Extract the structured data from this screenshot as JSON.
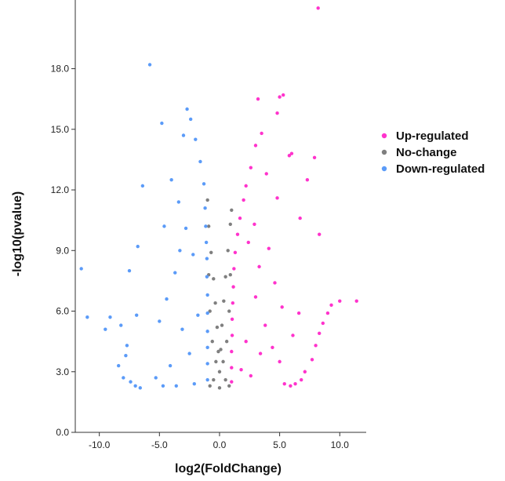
{
  "chart_data": {
    "type": "scatter",
    "title": "",
    "xlabel": "log2(FoldChange)",
    "ylabel": "-log10(pvalue)",
    "xlim": [
      -12,
      12.2
    ],
    "ylim": [
      0,
      21.4
    ],
    "x_ticks": [
      -10,
      -5,
      0,
      5,
      10
    ],
    "x_tick_labels": [
      "-10.0",
      "-5.0",
      "0.0",
      "5.0",
      "10.0"
    ],
    "y_ticks": [
      0,
      3,
      6,
      9,
      12,
      15,
      18
    ],
    "y_tick_labels": [
      "0.0",
      "3.0",
      "6.0",
      "9.0",
      "12.0",
      "15.0",
      "18.0"
    ],
    "grid": false,
    "legend_position": "right",
    "series": [
      {
        "name": "Up-regulated",
        "color": "#ff33cc",
        "points": [
          [
            8.2,
            21.0
          ],
          [
            5.3,
            16.7
          ],
          [
            5.0,
            16.6
          ],
          [
            3.2,
            16.5
          ],
          [
            4.8,
            15.8
          ],
          [
            6.0,
            13.8
          ],
          [
            5.8,
            13.7
          ],
          [
            7.9,
            13.6
          ],
          [
            7.3,
            12.5
          ],
          [
            6.7,
            10.6
          ],
          [
            8.3,
            9.8
          ],
          [
            9.3,
            6.3
          ],
          [
            10.0,
            6.5
          ],
          [
            11.4,
            6.5
          ],
          [
            9.0,
            5.9
          ],
          [
            8.6,
            5.4
          ],
          [
            8.3,
            4.9
          ],
          [
            8.0,
            4.3
          ],
          [
            7.7,
            3.6
          ],
          [
            7.1,
            3.0
          ],
          [
            6.8,
            2.6
          ],
          [
            6.3,
            2.4
          ],
          [
            5.9,
            2.3
          ],
          [
            5.4,
            2.4
          ],
          [
            3.5,
            14.8
          ],
          [
            3.0,
            14.2
          ],
          [
            2.6,
            13.1
          ],
          [
            2.2,
            12.2
          ],
          [
            2.0,
            11.5
          ],
          [
            1.7,
            10.6
          ],
          [
            1.5,
            9.8
          ],
          [
            1.3,
            8.9
          ],
          [
            1.2,
            8.1
          ],
          [
            1.15,
            7.2
          ],
          [
            1.1,
            6.4
          ],
          [
            1.05,
            5.6
          ],
          [
            1.05,
            4.8
          ],
          [
            1.0,
            4.0
          ],
          [
            1.0,
            3.2
          ],
          [
            1.0,
            2.5
          ],
          [
            2.4,
            9.4
          ],
          [
            2.9,
            10.3
          ],
          [
            3.3,
            8.2
          ],
          [
            4.1,
            9.1
          ],
          [
            4.6,
            7.4
          ],
          [
            5.2,
            6.2
          ],
          [
            3.8,
            5.3
          ],
          [
            4.4,
            4.2
          ],
          [
            5.0,
            3.5
          ],
          [
            6.1,
            4.8
          ],
          [
            6.6,
            5.9
          ],
          [
            3.0,
            6.7
          ],
          [
            2.2,
            4.5
          ],
          [
            1.8,
            3.1
          ],
          [
            2.6,
            2.8
          ],
          [
            3.4,
            3.9
          ],
          [
            4.8,
            11.6
          ],
          [
            3.9,
            12.8
          ]
        ]
      },
      {
        "name": "No-change",
        "color": "#7f7f7f",
        "points": [
          [
            -1.0,
            11.5
          ],
          [
            -0.9,
            10.2
          ],
          [
            -0.7,
            8.9
          ],
          [
            -0.5,
            7.6
          ],
          [
            -0.35,
            6.4
          ],
          [
            -0.2,
            5.2
          ],
          [
            -0.1,
            4.0
          ],
          [
            0.0,
            3.0
          ],
          [
            0.1,
            4.1
          ],
          [
            0.2,
            5.3
          ],
          [
            0.35,
            6.5
          ],
          [
            0.5,
            7.7
          ],
          [
            0.7,
            9.0
          ],
          [
            0.9,
            10.3
          ],
          [
            1.0,
            11.0
          ],
          [
            -0.8,
            2.3
          ],
          [
            0.8,
            2.3
          ],
          [
            -0.5,
            2.6
          ],
          [
            0.5,
            2.6
          ],
          [
            0.0,
            2.2
          ],
          [
            -0.3,
            3.5
          ],
          [
            0.3,
            3.5
          ],
          [
            0.6,
            4.5
          ],
          [
            -0.6,
            4.5
          ],
          [
            0.8,
            6.0
          ],
          [
            -0.8,
            6.0
          ],
          [
            0.9,
            7.8
          ],
          [
            -0.9,
            7.8
          ]
        ]
      },
      {
        "name": "Down-regulated",
        "color": "#5b9bf8",
        "points": [
          [
            -5.8,
            18.2
          ],
          [
            -2.7,
            16.0
          ],
          [
            -2.4,
            15.5
          ],
          [
            -4.8,
            15.3
          ],
          [
            -3.0,
            14.7
          ],
          [
            -2.0,
            14.5
          ],
          [
            -1.6,
            13.4
          ],
          [
            -1.3,
            12.3
          ],
          [
            -1.2,
            11.1
          ],
          [
            -1.15,
            10.2
          ],
          [
            -1.1,
            9.4
          ],
          [
            -1.05,
            8.6
          ],
          [
            -1.05,
            7.7
          ],
          [
            -1.0,
            6.8
          ],
          [
            -1.0,
            5.9
          ],
          [
            -1.0,
            5.0
          ],
          [
            -1.0,
            4.2
          ],
          [
            -1.0,
            3.4
          ],
          [
            -1.0,
            2.6
          ],
          [
            -6.4,
            12.2
          ],
          [
            -6.8,
            9.2
          ],
          [
            -7.5,
            8.0
          ],
          [
            -11.5,
            8.1
          ],
          [
            -11.0,
            5.7
          ],
          [
            -9.5,
            5.1
          ],
          [
            -9.1,
            5.7
          ],
          [
            -8.2,
            5.3
          ],
          [
            -7.7,
            4.3
          ],
          [
            -7.8,
            3.8
          ],
          [
            -8.4,
            3.3
          ],
          [
            -8.0,
            2.7
          ],
          [
            -7.4,
            2.5
          ],
          [
            -7.0,
            2.3
          ],
          [
            -6.6,
            2.2
          ],
          [
            -6.9,
            5.8
          ],
          [
            -4.0,
            12.5
          ],
          [
            -3.4,
            11.4
          ],
          [
            -2.8,
            10.1
          ],
          [
            -2.2,
            8.8
          ],
          [
            -3.7,
            7.9
          ],
          [
            -4.4,
            6.6
          ],
          [
            -5.0,
            5.5
          ],
          [
            -3.1,
            5.1
          ],
          [
            -2.5,
            3.9
          ],
          [
            -4.1,
            3.3
          ],
          [
            -5.3,
            2.7
          ],
          [
            -1.8,
            5.8
          ],
          [
            -2.1,
            2.4
          ],
          [
            -3.6,
            2.3
          ],
          [
            -4.7,
            2.3
          ],
          [
            -3.3,
            9.0
          ],
          [
            -4.6,
            10.2
          ]
        ]
      }
    ]
  },
  "legend": {
    "entries": [
      {
        "label": "Up-regulated",
        "color": "#ff33cc"
      },
      {
        "label": "No-change",
        "color": "#7f7f7f"
      },
      {
        "label": "Down-regulated",
        "color": "#5b9bf8"
      }
    ]
  }
}
